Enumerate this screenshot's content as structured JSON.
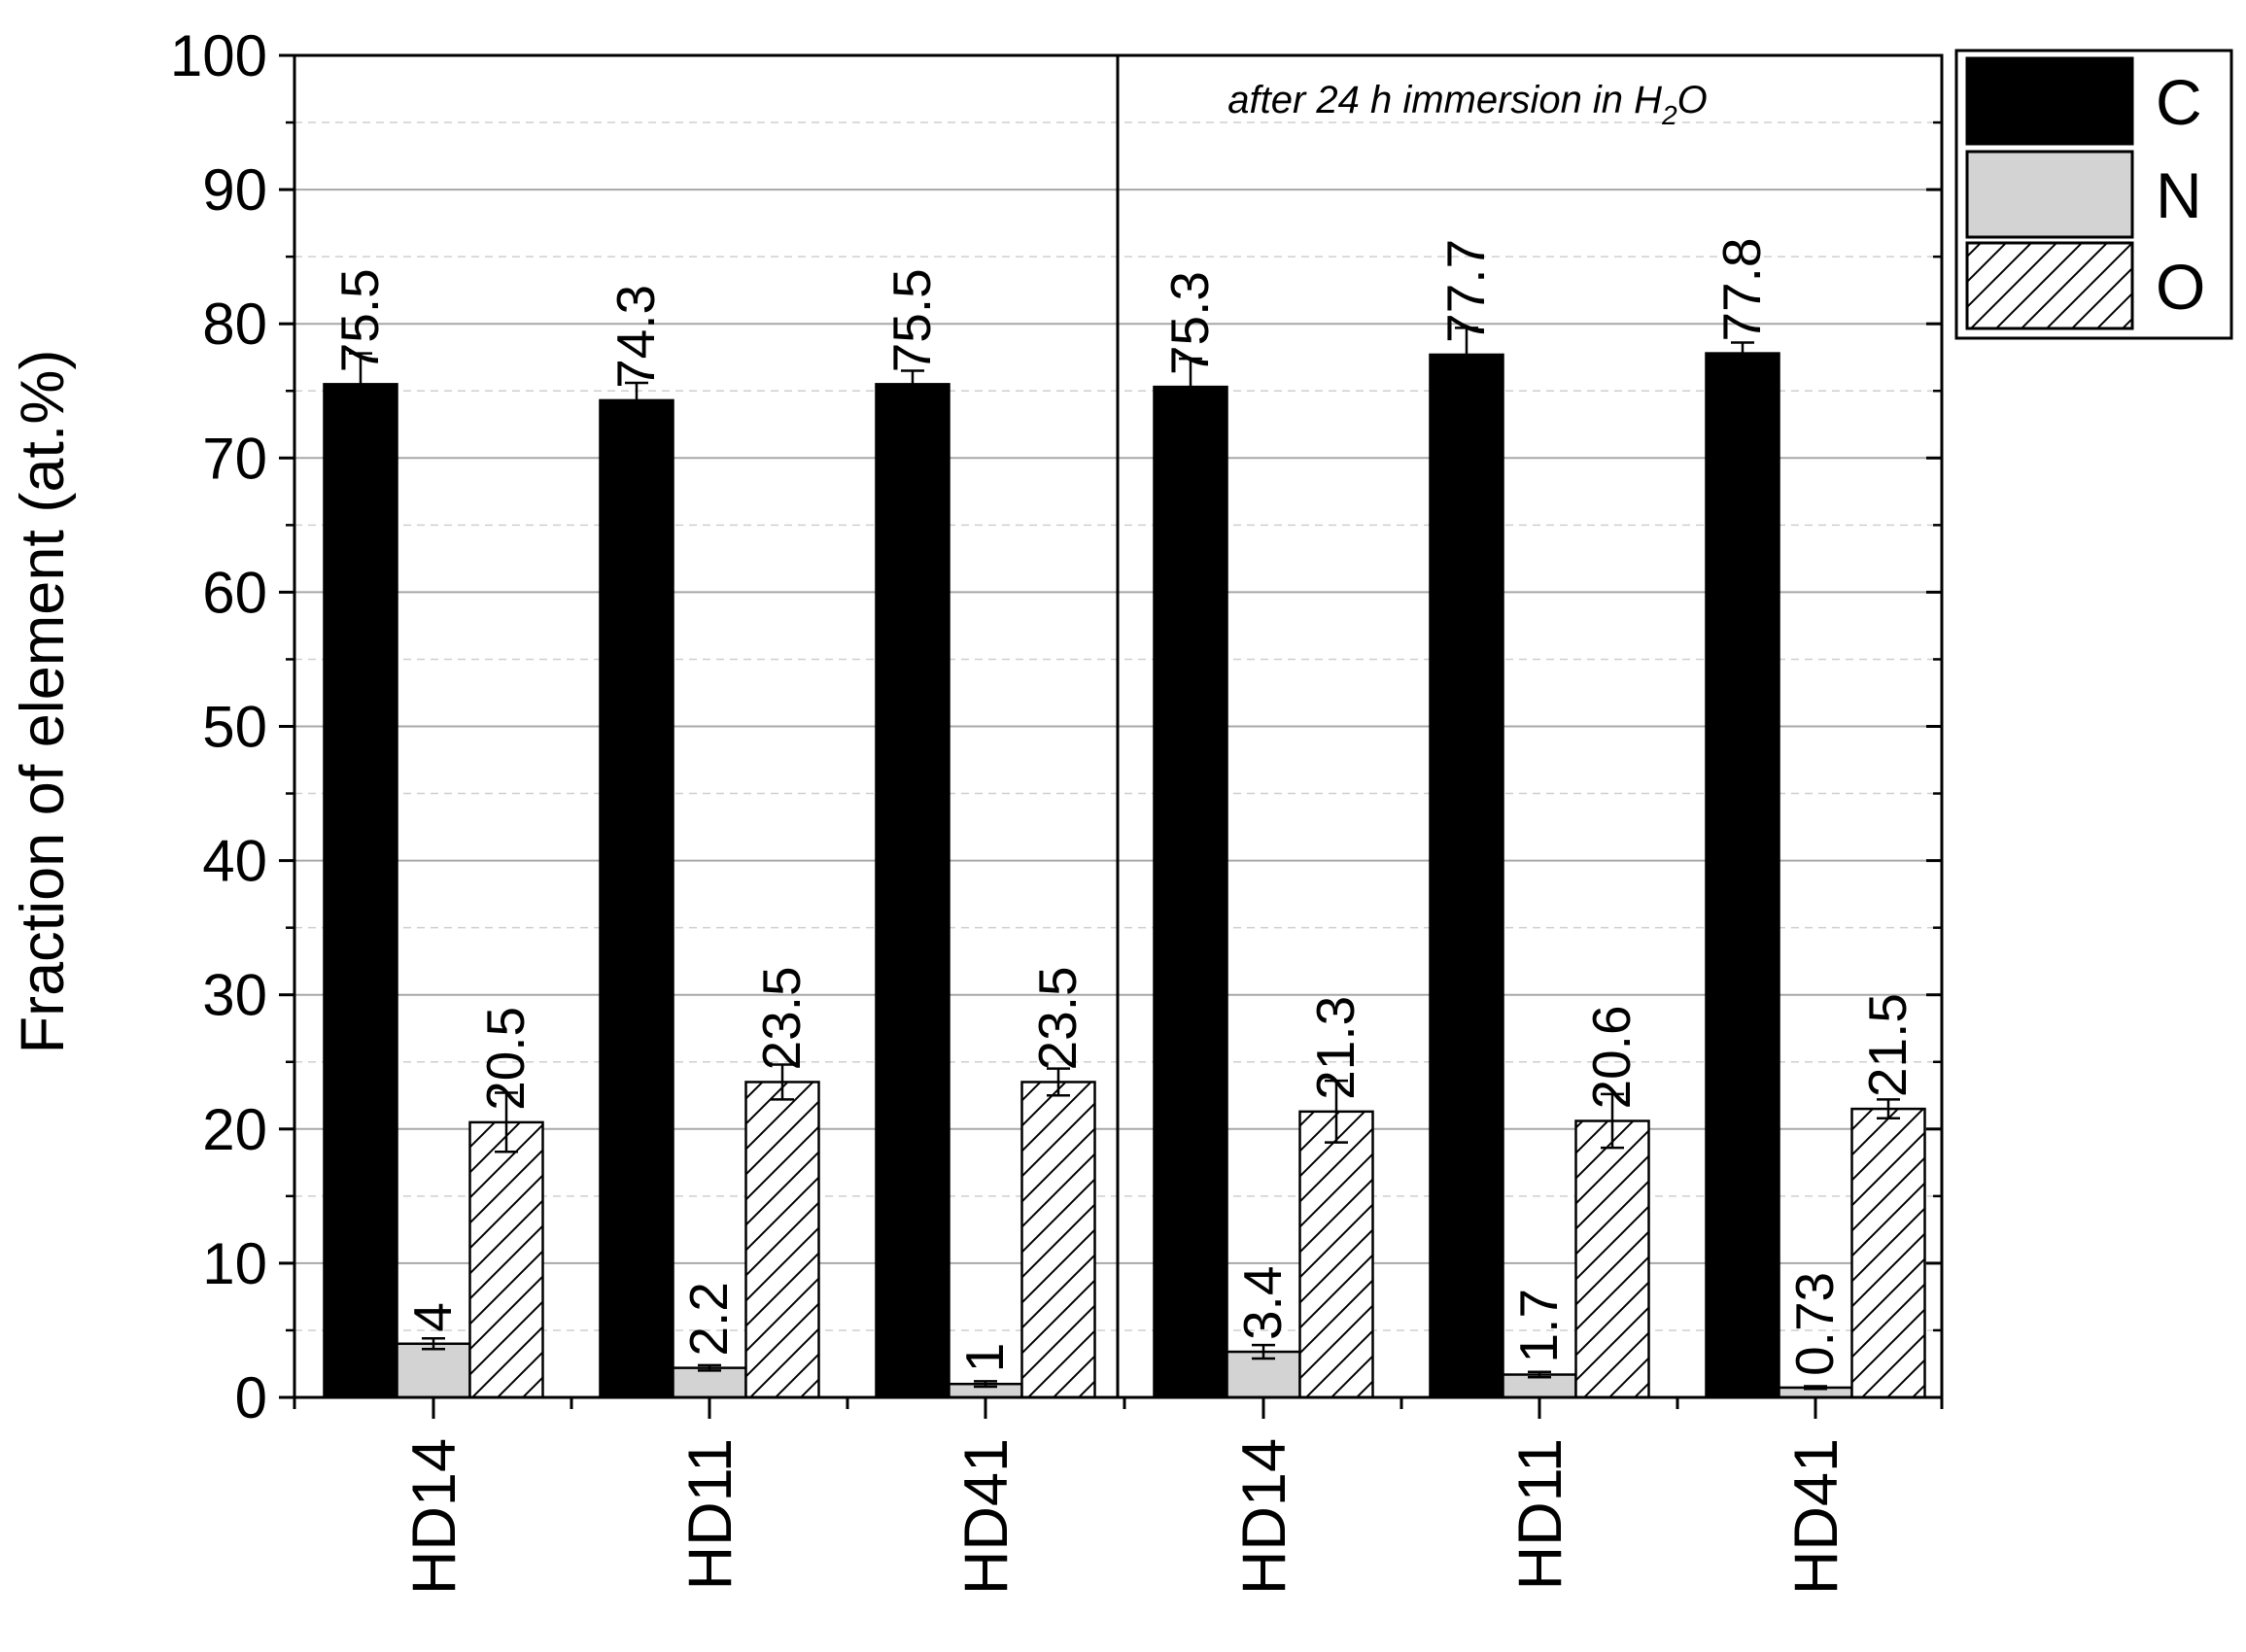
{
  "chart_data": {
    "type": "bar",
    "ylabel": "Fraction of element (at.%)",
    "xlabel": "",
    "ylim": [
      0,
      100
    ],
    "yticks": [
      0,
      10,
      20,
      30,
      40,
      50,
      60,
      70,
      80,
      90,
      100
    ],
    "grid": "horizontal, dashed minor lines at 5-unit steps",
    "legend_position": "top-right, outside plot",
    "categories": [
      "HD14",
      "HD11",
      "HD41",
      "HD14",
      "HD11",
      "HD41"
    ],
    "groups_note": "first three categories before immersion; last three after immersion",
    "annotation": {
      "text_prefix": "after 24 h immersion in H",
      "subscript": "2",
      "text_suffix": "O"
    },
    "series": [
      {
        "name": "C",
        "fill": "solid",
        "color": "#000000",
        "values": [
          75.5,
          74.3,
          75.5,
          75.3,
          77.7,
          77.8
        ],
        "labels": [
          "75.5",
          "74.3",
          "75.5",
          "75.3",
          "77.7",
          "77.8"
        ],
        "errors": [
          2.3,
          1.3,
          1.0,
          2.1,
          2.0,
          0.8
        ]
      },
      {
        "name": "N",
        "fill": "solid",
        "color": "#d3d3d3",
        "values": [
          4,
          2.2,
          1,
          3.4,
          1.7,
          0.73
        ],
        "labels": [
          "4",
          "2.2",
          "1",
          "3.4",
          "1.7",
          "0.73"
        ],
        "errors": [
          0.4,
          0.2,
          0.2,
          0.5,
          0.2,
          0.1
        ]
      },
      {
        "name": "O",
        "fill": "hatched",
        "color": "#ffffff",
        "values": [
          20.5,
          23.5,
          23.5,
          21.3,
          20.6,
          21.5
        ],
        "labels": [
          "20.5",
          "23.5",
          "23.5",
          "21.3",
          "20.6",
          "21.5"
        ],
        "errors": [
          2.2,
          1.3,
          1.0,
          2.3,
          2.0,
          0.7
        ]
      }
    ]
  }
}
